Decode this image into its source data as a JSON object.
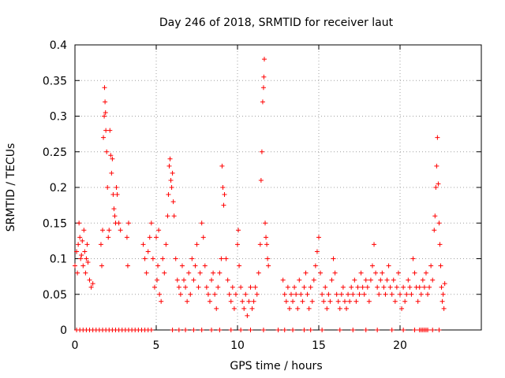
{
  "chart_data": {
    "type": "scatter",
    "marker": "plus",
    "title": "Day 246 of 2018, SRMTID for receiver laut",
    "xlabel": "GPS time / hours",
    "ylabel": "SRMTID / TECUs",
    "xlim": [
      0,
      25
    ],
    "ylim": [
      0,
      0.4
    ],
    "xticks": [
      0,
      5,
      10,
      15,
      20
    ],
    "xtick_labels": [
      "0",
      "5",
      "10",
      "15",
      "20"
    ],
    "yticks": [
      0,
      0.05,
      0.1,
      0.15,
      0.2,
      0.25,
      0.3,
      0.35,
      0.4
    ],
    "ytick_labels": [
      "0",
      "0.05",
      "0.1",
      "0.15",
      "0.2",
      "0.25",
      "0.3",
      "0.35",
      "0.4"
    ],
    "grid": true,
    "series_color": "#ff0000",
    "series": [
      {
        "name": "SRMTID",
        "points": [
          [
            0.0,
            0.09
          ],
          [
            0.1,
            0.11
          ],
          [
            0.15,
            0.08
          ],
          [
            0.2,
            0.12
          ],
          [
            0.25,
            0.15
          ],
          [
            0.3,
            0.13
          ],
          [
            0.35,
            0.1
          ],
          [
            0.4,
            0.105
          ],
          [
            0.45,
            0.125
          ],
          [
            0.5,
            0.09
          ],
          [
            0.55,
            0.14
          ],
          [
            0.6,
            0.11
          ],
          [
            0.65,
            0.08
          ],
          [
            0.7,
            0.1
          ],
          [
            0.75,
            0.12
          ],
          [
            0.8,
            0.095
          ],
          [
            0.9,
            0.07
          ],
          [
            1.0,
            0.06
          ],
          [
            1.1,
            0.065
          ],
          [
            1.6,
            0.12
          ],
          [
            1.65,
            0.09
          ],
          [
            1.7,
            0.14
          ],
          [
            1.75,
            0.27
          ],
          [
            1.8,
            0.3
          ],
          [
            1.82,
            0.34
          ],
          [
            1.85,
            0.32
          ],
          [
            1.88,
            0.305
          ],
          [
            1.9,
            0.28
          ],
          [
            1.95,
            0.25
          ],
          [
            2.0,
            0.2
          ],
          [
            2.05,
            0.13
          ],
          [
            2.1,
            0.14
          ],
          [
            2.15,
            0.28
          ],
          [
            2.2,
            0.245
          ],
          [
            2.25,
            0.22
          ],
          [
            2.3,
            0.24
          ],
          [
            2.35,
            0.19
          ],
          [
            2.4,
            0.17
          ],
          [
            2.45,
            0.16
          ],
          [
            2.5,
            0.15
          ],
          [
            2.55,
            0.2
          ],
          [
            2.6,
            0.19
          ],
          [
            2.7,
            0.15
          ],
          [
            2.8,
            0.14
          ],
          [
            3.2,
            0.13
          ],
          [
            3.25,
            0.09
          ],
          [
            3.3,
            0.15
          ],
          [
            4.2,
            0.12
          ],
          [
            4.3,
            0.1
          ],
          [
            4.4,
            0.08
          ],
          [
            4.5,
            0.11
          ],
          [
            4.6,
            0.13
          ],
          [
            4.7,
            0.15
          ],
          [
            4.8,
            0.1
          ],
          [
            4.9,
            0.06
          ],
          [
            5.0,
            0.13
          ],
          [
            5.05,
            0.07
          ],
          [
            5.1,
            0.09
          ],
          [
            5.15,
            0.14
          ],
          [
            5.2,
            0.05
          ],
          [
            5.3,
            0.04
          ],
          [
            5.4,
            0.1
          ],
          [
            5.5,
            0.08
          ],
          [
            5.6,
            0.12
          ],
          [
            5.7,
            0.16
          ],
          [
            5.75,
            0.19
          ],
          [
            5.8,
            0.23
          ],
          [
            5.85,
            0.24
          ],
          [
            5.9,
            0.21
          ],
          [
            5.95,
            0.2
          ],
          [
            6.0,
            0.22
          ],
          [
            6.05,
            0.18
          ],
          [
            6.1,
            0.16
          ],
          [
            6.2,
            0.1
          ],
          [
            6.3,
            0.07
          ],
          [
            6.4,
            0.06
          ],
          [
            6.5,
            0.05
          ],
          [
            6.6,
            0.09
          ],
          [
            6.7,
            0.07
          ],
          [
            6.8,
            0.06
          ],
          [
            6.9,
            0.04
          ],
          [
            7.0,
            0.08
          ],
          [
            7.1,
            0.05
          ],
          [
            7.2,
            0.1
          ],
          [
            7.3,
            0.07
          ],
          [
            7.4,
            0.09
          ],
          [
            7.5,
            0.12
          ],
          [
            7.6,
            0.06
          ],
          [
            7.7,
            0.08
          ],
          [
            7.8,
            0.15
          ],
          [
            7.9,
            0.13
          ],
          [
            8.0,
            0.09
          ],
          [
            8.1,
            0.06
          ],
          [
            8.2,
            0.05
          ],
          [
            8.3,
            0.04
          ],
          [
            8.4,
            0.07
          ],
          [
            8.5,
            0.08
          ],
          [
            8.6,
            0.05
          ],
          [
            8.7,
            0.03
          ],
          [
            8.8,
            0.06
          ],
          [
            8.9,
            0.08
          ],
          [
            9.0,
            0.1
          ],
          [
            9.05,
            0.23
          ],
          [
            9.1,
            0.2
          ],
          [
            9.15,
            0.175
          ],
          [
            9.2,
            0.19
          ],
          [
            9.3,
            0.1
          ],
          [
            9.4,
            0.07
          ],
          [
            9.5,
            0.05
          ],
          [
            9.6,
            0.04
          ],
          [
            9.7,
            0.06
          ],
          [
            9.8,
            0.03
          ],
          [
            9.9,
            0.05
          ],
          [
            10.0,
            0.12
          ],
          [
            10.05,
            0.14
          ],
          [
            10.1,
            0.09
          ],
          [
            10.2,
            0.06
          ],
          [
            10.3,
            0.04
          ],
          [
            10.4,
            0.03
          ],
          [
            10.5,
            0.05
          ],
          [
            10.6,
            0.02
          ],
          [
            10.7,
            0.04
          ],
          [
            10.8,
            0.06
          ],
          [
            10.9,
            0.03
          ],
          [
            11.0,
            0.04
          ],
          [
            11.1,
            0.06
          ],
          [
            11.2,
            0.05
          ],
          [
            11.3,
            0.08
          ],
          [
            11.4,
            0.12
          ],
          [
            11.45,
            0.21
          ],
          [
            11.5,
            0.25
          ],
          [
            11.55,
            0.32
          ],
          [
            11.6,
            0.34
          ],
          [
            11.62,
            0.355
          ],
          [
            11.65,
            0.38
          ],
          [
            11.7,
            0.15
          ],
          [
            11.75,
            0.13
          ],
          [
            11.8,
            0.12
          ],
          [
            11.85,
            0.1
          ],
          [
            11.9,
            0.09
          ],
          [
            12.8,
            0.07
          ],
          [
            12.9,
            0.05
          ],
          [
            13.0,
            0.04
          ],
          [
            13.1,
            0.06
          ],
          [
            13.2,
            0.03
          ],
          [
            13.3,
            0.05
          ],
          [
            13.4,
            0.04
          ],
          [
            13.5,
            0.06
          ],
          [
            13.6,
            0.05
          ],
          [
            13.7,
            0.03
          ],
          [
            13.8,
            0.07
          ],
          [
            13.9,
            0.05
          ],
          [
            14.0,
            0.04
          ],
          [
            14.1,
            0.06
          ],
          [
            14.2,
            0.08
          ],
          [
            14.3,
            0.05
          ],
          [
            14.4,
            0.03
          ],
          [
            14.5,
            0.06
          ],
          [
            14.6,
            0.04
          ],
          [
            14.7,
            0.07
          ],
          [
            14.8,
            0.09
          ],
          [
            14.9,
            0.11
          ],
          [
            15.0,
            0.13
          ],
          [
            15.1,
            0.08
          ],
          [
            15.2,
            0.05
          ],
          [
            15.3,
            0.04
          ],
          [
            15.4,
            0.06
          ],
          [
            15.5,
            0.03
          ],
          [
            15.6,
            0.05
          ],
          [
            15.7,
            0.04
          ],
          [
            15.8,
            0.07
          ],
          [
            15.9,
            0.1
          ],
          [
            16.0,
            0.08
          ],
          [
            16.1,
            0.05
          ],
          [
            16.2,
            0.04
          ],
          [
            16.3,
            0.03
          ],
          [
            16.4,
            0.05
          ],
          [
            16.5,
            0.06
          ],
          [
            16.6,
            0.04
          ],
          [
            16.7,
            0.03
          ],
          [
            16.8,
            0.05
          ],
          [
            16.9,
            0.04
          ],
          [
            17.0,
            0.06
          ],
          [
            17.1,
            0.05
          ],
          [
            17.2,
            0.07
          ],
          [
            17.3,
            0.04
          ],
          [
            17.4,
            0.06
          ],
          [
            17.5,
            0.05
          ],
          [
            17.6,
            0.08
          ],
          [
            17.7,
            0.06
          ],
          [
            17.8,
            0.05
          ],
          [
            17.9,
            0.07
          ],
          [
            18.0,
            0.06
          ],
          [
            18.1,
            0.04
          ],
          [
            18.2,
            0.07
          ],
          [
            18.3,
            0.09
          ],
          [
            18.4,
            0.12
          ],
          [
            18.5,
            0.08
          ],
          [
            18.6,
            0.06
          ],
          [
            18.7,
            0.05
          ],
          [
            18.8,
            0.07
          ],
          [
            18.9,
            0.08
          ],
          [
            19.0,
            0.06
          ],
          [
            19.1,
            0.05
          ],
          [
            19.2,
            0.07
          ],
          [
            19.3,
            0.09
          ],
          [
            19.4,
            0.06
          ],
          [
            19.5,
            0.05
          ],
          [
            19.6,
            0.07
          ],
          [
            19.7,
            0.04
          ],
          [
            19.8,
            0.06
          ],
          [
            19.9,
            0.08
          ],
          [
            20.0,
            0.05
          ],
          [
            20.1,
            0.03
          ],
          [
            20.2,
            0.06
          ],
          [
            20.3,
            0.04
          ],
          [
            20.4,
            0.05
          ],
          [
            20.5,
            0.07
          ],
          [
            20.6,
            0.06
          ],
          [
            20.7,
            0.05
          ],
          [
            20.8,
            0.1
          ],
          [
            20.9,
            0.08
          ],
          [
            21.0,
            0.06
          ],
          [
            21.1,
            0.04
          ],
          [
            21.2,
            0.06
          ],
          [
            21.3,
            0.05
          ],
          [
            21.4,
            0.07
          ],
          [
            21.5,
            0.06
          ],
          [
            21.6,
            0.08
          ],
          [
            21.7,
            0.05
          ],
          [
            21.8,
            0.06
          ],
          [
            21.9,
            0.09
          ],
          [
            22.0,
            0.07
          ],
          [
            22.1,
            0.14
          ],
          [
            22.15,
            0.16
          ],
          [
            22.2,
            0.2
          ],
          [
            22.25,
            0.23
          ],
          [
            22.3,
            0.27
          ],
          [
            22.35,
            0.205
          ],
          [
            22.4,
            0.15
          ],
          [
            22.45,
            0.12
          ],
          [
            22.5,
            0.09
          ],
          [
            22.55,
            0.06
          ],
          [
            22.6,
            0.04
          ],
          [
            22.65,
            0.05
          ],
          [
            22.7,
            0.03
          ],
          [
            22.75,
            0.065
          ]
        ],
        "zero_points": [
          0.1,
          0.3,
          0.5,
          0.7,
          0.9,
          1.1,
          1.3,
          1.5,
          1.7,
          1.9,
          2.1,
          2.3,
          2.5,
          2.7,
          2.9,
          3.1,
          3.3,
          3.5,
          3.7,
          3.9,
          4.1,
          4.3,
          4.5,
          4.7,
          6.0,
          6.4,
          6.8,
          7.3,
          7.8,
          8.4,
          8.9,
          9.6,
          10.2,
          10.8,
          11.6,
          12.5,
          12.9,
          13.4,
          14.1,
          14.5,
          15.2,
          16.3,
          17.1,
          17.9,
          18.6,
          19.5,
          20.2,
          20.9,
          21.2,
          21.3,
          21.4,
          21.5,
          21.6,
          21.7,
          22.0,
          22.4
        ]
      }
    ]
  }
}
